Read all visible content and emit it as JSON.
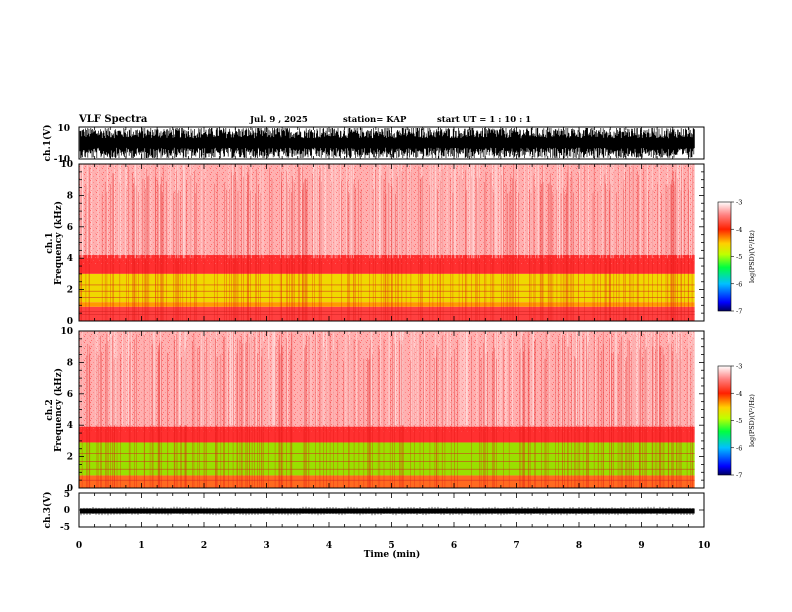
{
  "header": {
    "title": "VLF Spectra",
    "date": "Jul. 9 , 2025",
    "station": "station= KAP",
    "start": "start UT =  1 : 10 : 1"
  },
  "chart_data": [
    {
      "type": "line",
      "panel": "ch1-waveform",
      "ylabel": "ch.1(V)",
      "ylim": [
        -10,
        10
      ],
      "yticks": [
        "10",
        "-10"
      ],
      "xlim": [
        0,
        10
      ],
      "color": "#000000"
    },
    {
      "type": "heatmap",
      "panel": "ch1-spectrogram",
      "ylabel": "ch.1\nFrequency (kHz)",
      "ylim": [
        0,
        10
      ],
      "yticks": [
        "0",
        "2",
        "4",
        "6",
        "8",
        "10"
      ],
      "xlim": [
        0,
        9.85
      ],
      "colorbar": {
        "label": "log(PSD)(V²/Hz)",
        "range": [
          -7,
          -3
        ],
        "ticks": [
          "-3",
          "-4",
          "-5",
          "-6",
          "-7"
        ],
        "colors": [
          "#000060",
          "#0000ff",
          "#00c0ff",
          "#00ff40",
          "#c0ff00",
          "#ffd000",
          "#ff2000",
          "#ff8080",
          "#ffffff"
        ]
      },
      "bands": [
        {
          "f_low": 3.6,
          "f_high": 10.0,
          "color": "#ffb0b0"
        },
        {
          "f_low": 3.0,
          "f_high": 4.2,
          "color": "#ff3030"
        },
        {
          "f_low": 1.2,
          "f_high": 3.0,
          "color": "#f0d800"
        },
        {
          "f_low": 0.9,
          "f_high": 1.2,
          "color": "#ff9a00"
        },
        {
          "f_low": 0.0,
          "f_high": 0.9,
          "color": "#ff4040"
        }
      ]
    },
    {
      "type": "heatmap",
      "panel": "ch2-spectrogram",
      "ylabel": "ch.2\nFrequency (kHz)",
      "ylim": [
        0,
        10
      ],
      "yticks": [
        "0",
        "2",
        "4",
        "6",
        "8",
        "10"
      ],
      "xlim": [
        0,
        9.85
      ],
      "colorbar": {
        "label": "log(PSD)(V²/Hz)",
        "range": [
          -7,
          -3
        ],
        "ticks": [
          "-3",
          "-4",
          "-5",
          "-6",
          "-7"
        ],
        "colors": [
          "#000060",
          "#0000ff",
          "#00c0ff",
          "#00ff40",
          "#c0ff00",
          "#ffd000",
          "#ff2000",
          "#ff8080",
          "#ffffff"
        ]
      },
      "bands": [
        {
          "f_low": 3.4,
          "f_high": 10.0,
          "color": "#ffb0b0"
        },
        {
          "f_low": 2.9,
          "f_high": 3.9,
          "color": "#ff3030"
        },
        {
          "f_low": 0.8,
          "f_high": 2.9,
          "color": "#9ae000"
        },
        {
          "f_low": 0.0,
          "f_high": 0.8,
          "color": "#ff6a20"
        }
      ]
    },
    {
      "type": "line",
      "panel": "ch3-waveform",
      "ylabel": "ch.3(V)",
      "ylim": [
        -5,
        5
      ],
      "yticks": [
        "5",
        "0",
        "-5"
      ],
      "xlim": [
        0,
        10
      ],
      "level": -0.3,
      "color": "#000000"
    }
  ],
  "xaxis": {
    "label": "Time (min)",
    "ticks": [
      "0",
      "1",
      "2",
      "3",
      "4",
      "5",
      "6",
      "7",
      "8",
      "9",
      "10"
    ],
    "range": [
      0,
      10
    ]
  }
}
